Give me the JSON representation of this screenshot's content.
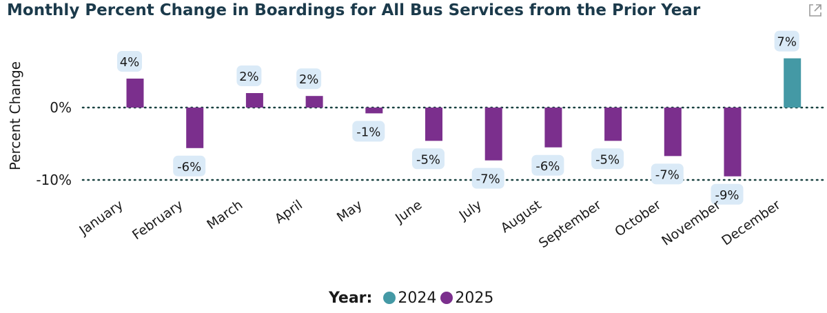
{
  "chart_data": {
    "type": "bar",
    "title": "Monthly Percent Change in Boardings for All Bus Services from the Prior Year",
    "ylabel": "Percent Change",
    "xlabel": "",
    "ylim": [
      -12,
      10
    ],
    "yticks": [
      {
        "value": 0,
        "label": "0%"
      },
      {
        "value": -10,
        "label": "-10%"
      }
    ],
    "grid": "dotted horizontal lines at y ticks",
    "categories": [
      "January",
      "February",
      "March",
      "April",
      "May",
      "June",
      "July",
      "August",
      "September",
      "October",
      "November",
      "December"
    ],
    "values": [
      4.0,
      -5.6,
      2.0,
      1.6,
      -0.8,
      -4.6,
      -7.3,
      -5.5,
      -4.6,
      -6.7,
      -9.5,
      6.8
    ],
    "data_labels": [
      "4%",
      "-6%",
      "2%",
      "2%",
      "-1%",
      "-5%",
      "-7%",
      "-6%",
      "-5%",
      "-7%",
      "-9%",
      "7%"
    ],
    "bar_years": [
      "2025",
      "2025",
      "2025",
      "2025",
      "2025",
      "2025",
      "2025",
      "2025",
      "2025",
      "2025",
      "2025",
      "2024"
    ],
    "legend": {
      "title": "Year:",
      "placement": "bottom-center",
      "items": [
        {
          "name": "2024",
          "color": "#4499a5"
        },
        {
          "name": "2025",
          "color": "#7b2f8d"
        }
      ]
    },
    "colors": {
      "2024": "#4499a5",
      "2025": "#7b2f8d",
      "label_bg": "#daeaf7",
      "title": "#1b3a4b"
    }
  },
  "icons": {
    "expand": "expand-icon"
  }
}
